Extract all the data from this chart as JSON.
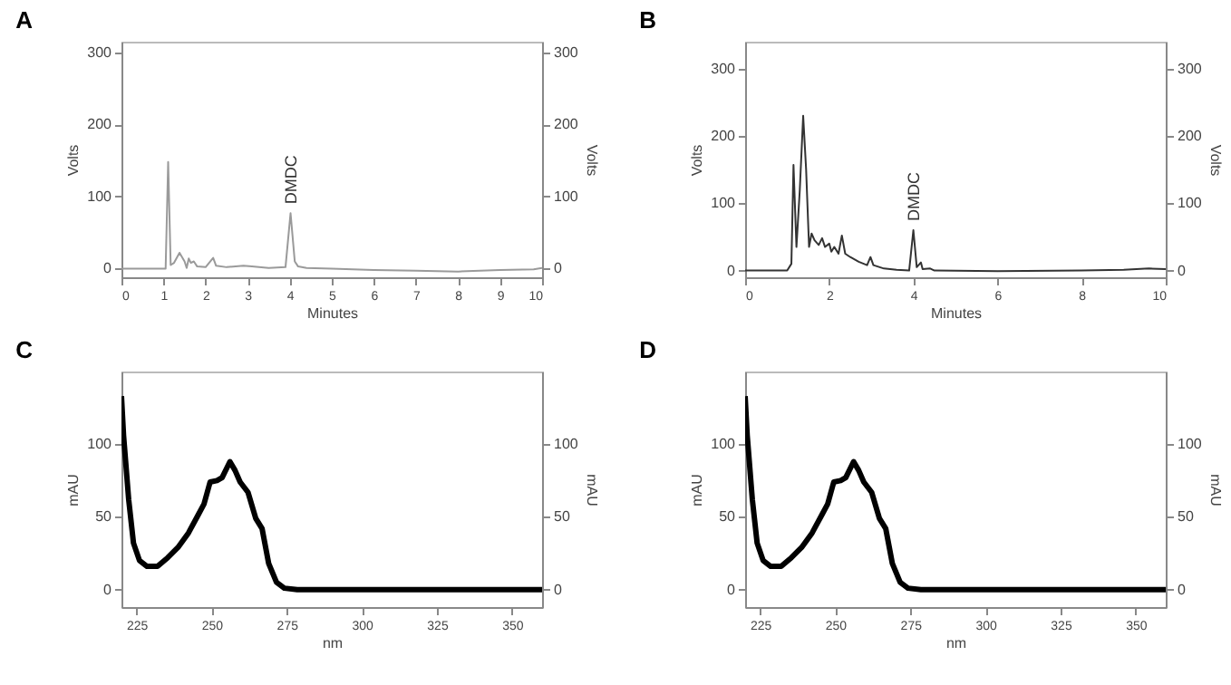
{
  "chart_data": [
    {
      "type": "line",
      "title": "A",
      "xlabel": "Minutes",
      "ylabel": "Volts",
      "y2label": "Volts",
      "xlim": [
        0,
        10
      ],
      "xticks": [
        0,
        1,
        2,
        3,
        4,
        5,
        6,
        7,
        8,
        9,
        10
      ],
      "ylim": [
        -12,
        315
      ],
      "yticks": [
        0,
        100,
        200,
        300
      ],
      "y2lim": [
        -12,
        315
      ],
      "y2ticks": [
        0,
        100,
        200,
        300
      ],
      "annotations": [
        {
          "text": "DMDC",
          "x": 4.02,
          "y": 77
        }
      ],
      "x": [
        0,
        1.05,
        1.11,
        1.17,
        1.25,
        1.38,
        1.5,
        1.55,
        1.6,
        1.65,
        1.72,
        1.8,
        2.0,
        2.18,
        2.25,
        2.5,
        2.9,
        3.1,
        3.5,
        3.9,
        4.02,
        4.12,
        4.2,
        4.4,
        5,
        6,
        7,
        8,
        9,
        9.8,
        10
      ],
      "series": [
        {
          "color": "#9a9a9a",
          "values": [
            0,
            0,
            148,
            5,
            8,
            22,
            10,
            1,
            14,
            8,
            10,
            3,
            2,
            15,
            4,
            2,
            4,
            3,
            1,
            2,
            77,
            10,
            3,
            1,
            0,
            -2,
            -3,
            -4,
            -2,
            -1,
            1
          ]
        }
      ]
    },
    {
      "type": "line",
      "title": "B",
      "xlabel": "Minutes",
      "ylabel": "Volts",
      "y2label": "Volts",
      "xlim": [
        0,
        10
      ],
      "xticks": [
        0,
        2,
        4,
        6,
        8,
        10
      ],
      "ylim": [
        -10,
        340
      ],
      "yticks": [
        0,
        100,
        200,
        300
      ],
      "y2lim": [
        -10,
        340
      ],
      "y2ticks": [
        0,
        100,
        200,
        300
      ],
      "annotations": [
        {
          "text": "DMDC",
          "x": 4.0,
          "y": 60
        }
      ],
      "x": [
        0,
        1.0,
        1.1,
        1.15,
        1.22,
        1.3,
        1.38,
        1.45,
        1.52,
        1.58,
        1.65,
        1.75,
        1.83,
        1.9,
        2.0,
        2.05,
        2.12,
        2.22,
        2.3,
        2.38,
        2.5,
        2.7,
        2.9,
        2.98,
        3.05,
        3.3,
        3.6,
        3.9,
        4.0,
        4.08,
        4.18,
        4.22,
        4.4,
        4.5,
        6,
        8,
        9,
        9.6,
        10
      ],
      "series": [
        {
          "color": "#333333",
          "values": [
            0,
            0,
            10,
            157,
            35,
            120,
            230,
            150,
            35,
            55,
            45,
            38,
            48,
            35,
            40,
            28,
            35,
            25,
            52,
            25,
            20,
            13,
            8,
            20,
            8,
            3,
            1,
            0,
            60,
            5,
            12,
            2,
            3,
            0,
            -1,
            0,
            1,
            3,
            2
          ]
        }
      ]
    },
    {
      "type": "line",
      "title": "C",
      "xlabel": "nm",
      "ylabel": "mAU",
      "y2label": "mAU",
      "xlim": [
        220,
        360
      ],
      "xticks": [
        225,
        250,
        275,
        300,
        325,
        350
      ],
      "ylim": [
        -12,
        150
      ],
      "yticks": [
        0,
        50,
        100
      ],
      "y2lim": [
        -12,
        150
      ],
      "y2ticks": [
        0,
        50,
        100
      ],
      "x": [
        220,
        220.7,
        222.4,
        224,
        226,
        228.5,
        232,
        235.4,
        238.8,
        242.3,
        245.7,
        247.5,
        249.5,
        251.8,
        253.5,
        256.1,
        257.8,
        259.5,
        262.1,
        264.7,
        266.8,
        269,
        271.6,
        274.2,
        278.5,
        300,
        330,
        360
      ],
      "series": [
        {
          "color": "#000000",
          "values": [
            133,
            106,
            62,
            32,
            20,
            16,
            16,
            22,
            29,
            39,
            52,
            59,
            74,
            75,
            77,
            88,
            82,
            74,
            67,
            49,
            42,
            18,
            5,
            1,
            0,
            0,
            0,
            0
          ]
        }
      ]
    },
    {
      "type": "line",
      "title": "D",
      "xlabel": "nm",
      "ylabel": "mAU",
      "y2label": "mAU",
      "xlim": [
        220,
        360
      ],
      "xticks": [
        225,
        250,
        275,
        300,
        325,
        350
      ],
      "ylim": [
        -12,
        150
      ],
      "yticks": [
        0,
        50,
        100
      ],
      "y2lim": [
        -12,
        150
      ],
      "y2ticks": [
        0,
        50,
        100
      ],
      "x": [
        220,
        220.7,
        222.4,
        224,
        226,
        228.5,
        232,
        235.4,
        238.8,
        242.3,
        245.7,
        247.5,
        249.5,
        251.8,
        253.5,
        256.1,
        257.8,
        259.5,
        262.1,
        264.7,
        266.8,
        269,
        271.6,
        274.2,
        278.5,
        300,
        330,
        360
      ],
      "series": [
        {
          "color": "#000000",
          "values": [
            133,
            106,
            62,
            32,
            20,
            16,
            16,
            22,
            29,
            39,
            52,
            59,
            74,
            75,
            77,
            88,
            82,
            74,
            67,
            49,
            42,
            18,
            5,
            1,
            0,
            0,
            0,
            0
          ]
        }
      ]
    }
  ]
}
